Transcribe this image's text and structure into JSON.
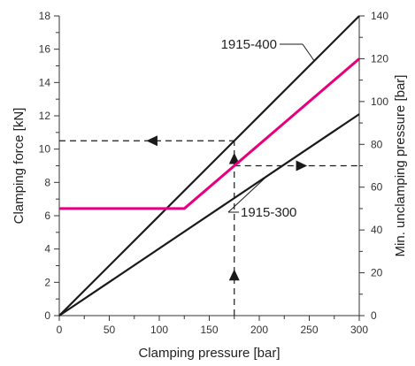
{
  "chart_data": {
    "type": "line",
    "title": "",
    "xlabel": "Clamping pressure [bar]",
    "ylabel_left": "Clamping force [kN]",
    "ylabel_right": "Min. unclamping pressure [bar]",
    "xlim": [
      0,
      300
    ],
    "ylim_left": [
      0,
      18
    ],
    "ylim_right": [
      0,
      140
    ],
    "x_ticks": [
      0,
      50,
      100,
      150,
      200,
      250,
      300
    ],
    "y_left_ticks": [
      0,
      2,
      4,
      6,
      8,
      10,
      12,
      14,
      16,
      18
    ],
    "y_right_ticks": [
      0,
      20,
      40,
      60,
      80,
      100,
      120,
      140
    ],
    "grid": false,
    "series": [
      {
        "name": "1915-400",
        "axis": "left",
        "color": "#1a1a1a",
        "x": [
          0,
          300
        ],
        "y": [
          0,
          18
        ]
      },
      {
        "name": "1915-300",
        "axis": "left",
        "color": "#1a1a1a",
        "x": [
          0,
          300
        ],
        "y": [
          0,
          12.1
        ]
      },
      {
        "name": "",
        "axis": "right",
        "color": "#e6007e",
        "x": [
          0,
          125,
          300
        ],
        "y": [
          50,
          50,
          120
        ]
      }
    ],
    "annotations": [
      {
        "text": "1915-400",
        "series": "1915-400"
      },
      {
        "text": "1915-300",
        "series": "1915-300"
      }
    ],
    "guides": {
      "x": 175,
      "left_y": 10.5,
      "right_y": 70,
      "color": "#1a1a1a"
    }
  }
}
